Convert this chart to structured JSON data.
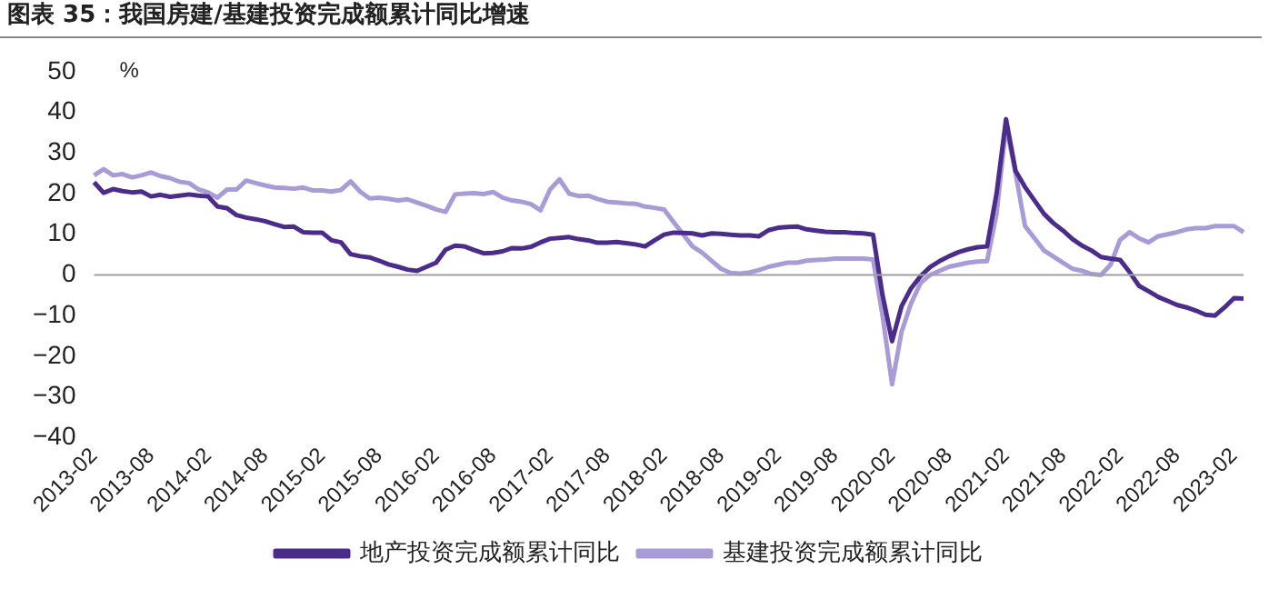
{
  "chart_data": {
    "type": "line",
    "title": "图表 35：我国房建/基建投资完成额累计同比增速",
    "ylabel": "%",
    "categories": [
      "2013-02",
      null,
      null,
      null,
      null,
      null,
      "2013-08",
      null,
      null,
      null,
      null,
      null,
      "2014-02",
      null,
      null,
      null,
      null,
      null,
      "2014-08",
      null,
      null,
      null,
      null,
      null,
      "2015-02",
      null,
      null,
      null,
      null,
      null,
      "2015-08",
      null,
      null,
      null,
      null,
      null,
      "2016-02",
      null,
      null,
      null,
      null,
      null,
      "2016-08",
      null,
      null,
      null,
      null,
      null,
      "2017-02",
      null,
      null,
      null,
      null,
      null,
      "2017-08",
      null,
      null,
      null,
      null,
      null,
      "2018-02",
      null,
      null,
      null,
      null,
      null,
      "2018-08",
      null,
      null,
      null,
      null,
      null,
      "2019-02",
      null,
      null,
      null,
      null,
      null,
      "2019-08",
      null,
      null,
      null,
      null,
      null,
      "2020-02",
      null,
      null,
      null,
      null,
      null,
      "2020-08",
      null,
      null,
      null,
      null,
      null,
      "2021-02",
      null,
      null,
      null,
      null,
      null,
      "2021-08",
      null,
      null,
      null,
      null,
      null,
      "2022-02",
      null,
      null,
      null,
      null,
      null,
      "2022-08",
      null,
      null,
      null,
      null,
      null,
      "2023-02",
      null
    ],
    "series": [
      {
        "name": "地产投资完成额累计同比",
        "color": "#4b2c8a",
        "values": [
          22.8,
          20.2,
          21.1,
          20.6,
          20.3,
          20.5,
          19.3,
          19.7,
          19.2,
          19.5,
          19.8,
          19.5,
          19.3,
          16.8,
          16.4,
          14.7,
          14.1,
          13.7,
          13.2,
          12.5,
          11.8,
          11.9,
          10.5,
          10.4,
          10.4,
          8.5,
          8.0,
          5.1,
          4.6,
          4.3,
          3.5,
          2.6,
          2.0,
          1.3,
          1.0,
          2.0,
          3.0,
          6.2,
          7.2,
          7.0,
          6.1,
          5.3,
          5.4,
          5.8,
          6.6,
          6.5,
          6.9,
          8.0,
          8.9,
          9.1,
          9.3,
          8.8,
          8.5,
          7.9,
          7.9,
          8.1,
          7.8,
          7.5,
          7.0,
          8.5,
          9.9,
          10.4,
          10.3,
          10.2,
          9.7,
          10.2,
          10.1,
          9.9,
          9.7,
          9.7,
          9.5,
          11.0,
          11.6,
          11.8,
          11.9,
          11.2,
          10.9,
          10.6,
          10.5,
          10.5,
          10.3,
          10.2,
          9.9,
          -5,
          -16.3,
          -7.7,
          -3.3,
          -0.3,
          1.9,
          3.4,
          4.6,
          5.6,
          6.3,
          6.8,
          7.0,
          20,
          38.3,
          25.6,
          21.6,
          18.3,
          15.0,
          12.7,
          10.9,
          8.8,
          7.2,
          6.0,
          4.4,
          4.0,
          3.7,
          0.7,
          -2.7,
          -4.0,
          -5.4,
          -6.4,
          -7.4,
          -8.0,
          -8.8,
          -9.8,
          -10.0,
          -8,
          -5.7,
          -5.8
        ]
      },
      {
        "name": "基建投资完成额累计同比",
        "color": "#a99bd6",
        "values": [
          24.5,
          26.0,
          24.5,
          24.8,
          24.0,
          24.5,
          25.2,
          24.3,
          23.8,
          22.9,
          22.6,
          21.0,
          20.3,
          19.0,
          21.0,
          21.0,
          23.2,
          22.6,
          22.0,
          21.5,
          21.4,
          21.2,
          21.5,
          20.8,
          20.8,
          20.5,
          20.9,
          23.0,
          20.5,
          18.8,
          19.0,
          18.7,
          18.3,
          18.6,
          17.8,
          17.0,
          16.1,
          15.5,
          19.8,
          20.0,
          20.1,
          19.9,
          20.4,
          19.0,
          18.3,
          18.0,
          17.4,
          15.9,
          21.0,
          23.5,
          20.0,
          19.4,
          19.5,
          18.7,
          18.0,
          17.8,
          17.6,
          17.5,
          16.8,
          16.5,
          16.1,
          13.0,
          10.0,
          7.0,
          5.5,
          3.5,
          1.5,
          0.5,
          0.3,
          0.6,
          1.2,
          2.0,
          2.5,
          3.0,
          3.0,
          3.5,
          3.7,
          3.8,
          4.0,
          4.0,
          4.0,
          4.0,
          3.8,
          -10,
          -26.9,
          -14.0,
          -7.0,
          -2.0,
          0.0,
          1.0,
          2.0,
          2.5,
          3.0,
          3.3,
          3.4,
          15,
          36.6,
          25,
          12,
          9,
          6.0,
          4.5,
          3.0,
          1.5,
          1.0,
          0.2,
          0.0,
          2.5,
          8.6,
          10.5,
          9.0,
          8.0,
          9.5,
          10.0,
          10.5,
          11.2,
          11.5,
          11.5,
          12.0,
          12.0,
          12.0,
          10.5
        ]
      }
    ],
    "ylim": [
      -40,
      50
    ],
    "yticks": [
      -40,
      -30,
      -20,
      -10,
      0,
      10,
      20,
      30,
      40,
      50
    ],
    "grid": false,
    "ref_lines": [
      {
        "axis": "y",
        "value": 0,
        "color": "#a0a0a0"
      }
    ],
    "legend": "bottom",
    "marker": "none",
    "line_style": "solid"
  }
}
